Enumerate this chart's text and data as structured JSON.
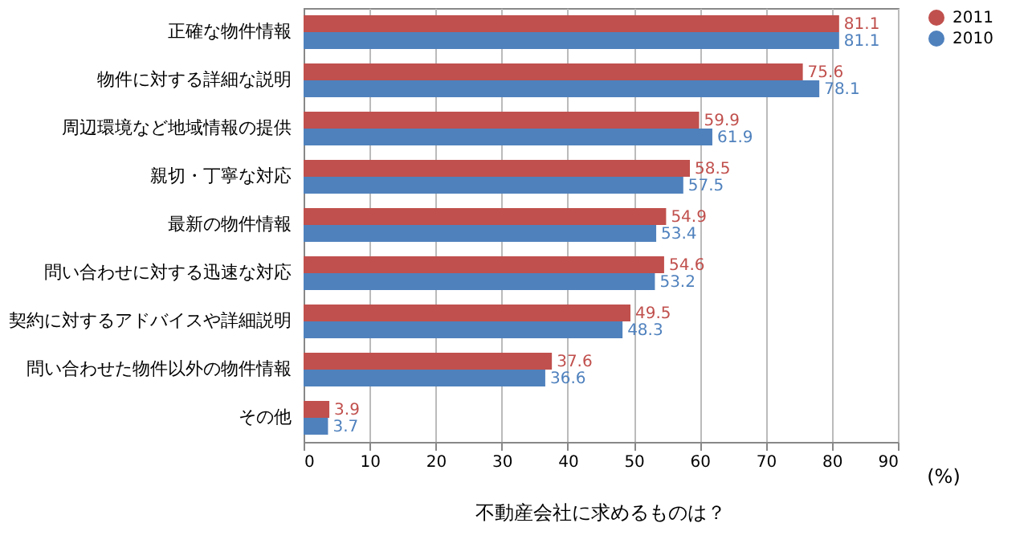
{
  "chart_data": {
    "type": "bar",
    "orientation": "horizontal",
    "categories": [
      "正確な物件情報",
      "物件に対する詳細な説明",
      "周辺環境など地域情報の提供",
      "親切・丁寧な対応",
      "最新の物件情報",
      "問い合わせに対する迅速な対応",
      "契約に対するアドバイスや詳細説明",
      "問い合わせた物件以外の物件情報",
      "その他"
    ],
    "series": [
      {
        "name": "2011",
        "color": "#c0504d",
        "values": [
          81.1,
          75.6,
          59.9,
          58.5,
          54.9,
          54.6,
          49.5,
          37.6,
          3.9
        ]
      },
      {
        "name": "2010",
        "color": "#4f81bd",
        "values": [
          81.1,
          78.1,
          61.9,
          57.5,
          53.4,
          53.2,
          48.3,
          36.6,
          3.7
        ]
      }
    ],
    "xlim": [
      0,
      90
    ],
    "xticks": [
      0,
      10,
      20,
      30,
      40,
      50,
      60,
      70,
      80,
      90
    ],
    "xlabel": "(%)",
    "annotations": [
      "不動産会社に求めるものは？"
    ],
    "grid": "x",
    "legend": "right",
    "data_labels": true
  }
}
